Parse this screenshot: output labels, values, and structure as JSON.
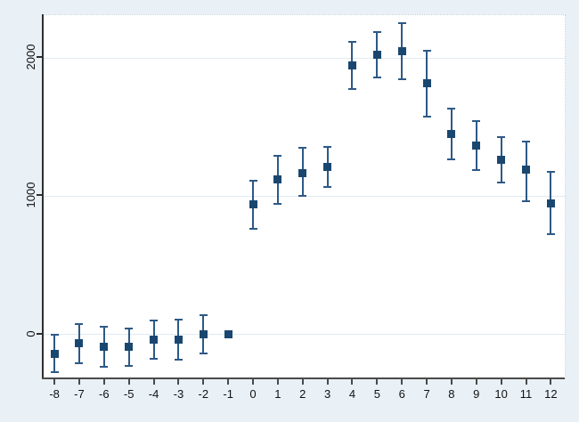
{
  "chart_data": {
    "type": "scatter",
    "subtype": "event-study-errorbar",
    "marker_shape": "square",
    "xlabel": "",
    "ylabel": "",
    "xlim": [
      -8.47,
      12.56
    ],
    "ylim": [
      -323,
      2310
    ],
    "grid": "horizontal",
    "x_ticks": [
      -8,
      -7,
      -6,
      -5,
      -4,
      -3,
      -2,
      -1,
      0,
      1,
      2,
      3,
      4,
      5,
      6,
      7,
      8,
      9,
      10,
      11,
      12
    ],
    "y_ticks": [
      0,
      1000,
      2000
    ],
    "y_tick_labels": [
      "0",
      "1000",
      "2000"
    ],
    "points": [
      {
        "t": -8,
        "y": -140,
        "lo": -270,
        "hi": 0
      },
      {
        "t": -7,
        "y": -60,
        "lo": -210,
        "hi": 75
      },
      {
        "t": -6,
        "y": -90,
        "lo": -235,
        "hi": 55
      },
      {
        "t": -5,
        "y": -85,
        "lo": -225,
        "hi": 45
      },
      {
        "t": -4,
        "y": -35,
        "lo": -175,
        "hi": 105
      },
      {
        "t": -3,
        "y": -35,
        "lo": -180,
        "hi": 110
      },
      {
        "t": -2,
        "y": 0,
        "lo": -135,
        "hi": 140
      },
      {
        "t": -1,
        "y": 0,
        "lo": null,
        "hi": null
      },
      {
        "t": 0,
        "y": 940,
        "lo": 765,
        "hi": 1115
      },
      {
        "t": 1,
        "y": 1120,
        "lo": 945,
        "hi": 1290
      },
      {
        "t": 2,
        "y": 1170,
        "lo": 1005,
        "hi": 1350
      },
      {
        "t": 3,
        "y": 1210,
        "lo": 1065,
        "hi": 1355
      },
      {
        "t": 4,
        "y": 1945,
        "lo": 1775,
        "hi": 2120
      },
      {
        "t": 5,
        "y": 2025,
        "lo": 1860,
        "hi": 2190
      },
      {
        "t": 6,
        "y": 2050,
        "lo": 1845,
        "hi": 2250
      },
      {
        "t": 7,
        "y": 1820,
        "lo": 1575,
        "hi": 2055
      },
      {
        "t": 8,
        "y": 1450,
        "lo": 1270,
        "hi": 1635
      },
      {
        "t": 9,
        "y": 1365,
        "lo": 1190,
        "hi": 1545
      },
      {
        "t": 10,
        "y": 1265,
        "lo": 1100,
        "hi": 1430
      },
      {
        "t": 11,
        "y": 1190,
        "lo": 965,
        "hi": 1395
      },
      {
        "t": 12,
        "y": 950,
        "lo": 725,
        "hi": 1180
      }
    ],
    "colors": {
      "background": "#e9f0f6",
      "plot_background": "#ffffff",
      "gridline": "#dfeaf2",
      "axis": "#3a3a3a",
      "tick_label": "#111111",
      "marker": "#1a476f",
      "ci_line": "#2d5986"
    }
  }
}
